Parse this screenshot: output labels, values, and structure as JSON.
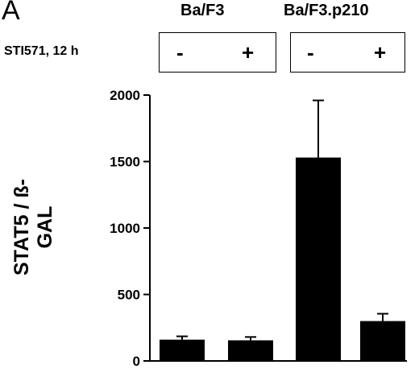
{
  "panel_label": "A",
  "groups": [
    "Ba/F3",
    "Ba/F3.p210"
  ],
  "treatment": {
    "label": "STI571, 12 h",
    "signs": [
      "-",
      "+",
      "-",
      "+"
    ]
  },
  "chart_data": {
    "type": "bar",
    "categories": [
      "Ba/F3 -",
      "Ba/F3 +",
      "Ba/F3.p210 -",
      "Ba/F3.p210 +"
    ],
    "values": [
      160,
      155,
      1530,
      300
    ],
    "errors": [
      25,
      25,
      430,
      55
    ],
    "title": "",
    "xlabel": "",
    "ylabel": "STAT5 / ß-GAL",
    "ylim": [
      0,
      2000
    ],
    "yticks": [
      0,
      500,
      1000,
      1500,
      2000
    ],
    "grid": false,
    "bar_color": "#000000"
  }
}
